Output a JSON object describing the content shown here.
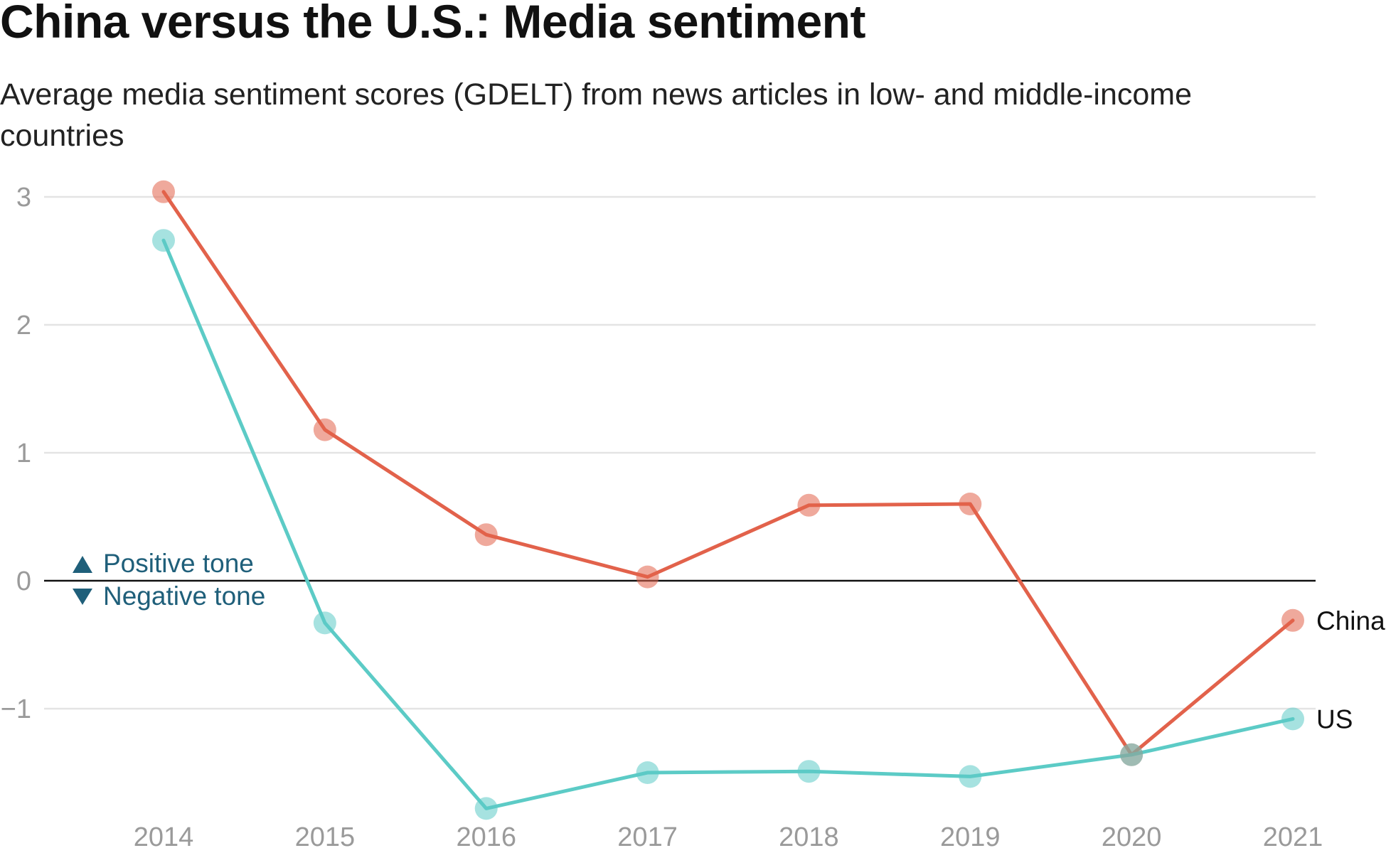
{
  "title": "China versus the U.S.: Media sentiment",
  "subtitle": "Average media sentiment scores (GDELT) from news articles in low- and middle-income countries",
  "annotations": {
    "positive_label": "Positive tone",
    "negative_label": "Negative tone",
    "color": "#1f5f7a"
  },
  "chart_data": {
    "type": "line",
    "x": [
      "2014",
      "2015",
      "2016",
      "2017",
      "2018",
      "2019",
      "2020",
      "2021"
    ],
    "y_ticks": [
      3,
      2,
      1,
      0,
      -1
    ],
    "y_tick_labels": [
      "3",
      "2",
      "1",
      "0",
      "−1"
    ],
    "ylim": [
      -1.8,
      3.1
    ],
    "grid": true,
    "series": [
      {
        "name": "China",
        "color": "#e2624b",
        "values": [
          3.04,
          1.18,
          0.36,
          0.03,
          0.59,
          0.6,
          -1.36,
          -0.31
        ]
      },
      {
        "name": "US",
        "color": "#5ccbc6",
        "values": [
          2.66,
          -0.33,
          -1.78,
          -1.5,
          -1.49,
          -1.53,
          -1.36,
          -1.08
        ]
      }
    ]
  }
}
